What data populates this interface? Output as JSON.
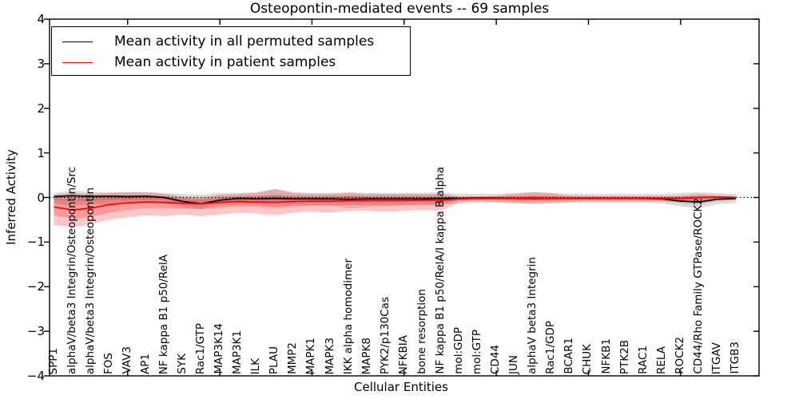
{
  "chart_data": {
    "type": "line",
    "title": "Osteopontin-mediated events -- 69 samples",
    "xlabel": "Cellular Entities",
    "ylabel": "Inferred Activity",
    "ylim": [
      -4,
      4
    ],
    "yticks": [
      -4,
      -3,
      -2,
      -1,
      0,
      1,
      2,
      3,
      4
    ],
    "grid": false,
    "zero_line": {
      "y": 0,
      "style": "dotted",
      "color": "#000000"
    },
    "legend": {
      "position": "upper left",
      "items": [
        {
          "label": "Mean activity in all permuted samples",
          "color": "#000000"
        },
        {
          "label": "Mean activity in patient samples",
          "color": "#ff0000"
        }
      ]
    },
    "categories": [
      "SPP1",
      "alphaV/beta3 Integrin/Osteopontin/Src",
      "alphaV/beta3 Integrin/Osteopontin",
      "FOS",
      "VAV3",
      "AP1",
      "NF kappa B1 p50/RelA",
      "SYK",
      "Rac1/GTP",
      "MAP3K14",
      "MAP3K1",
      "ILK",
      "PLAU",
      "MMP2",
      "MAPK1",
      "MAPK3",
      "IKK alpha homodimer",
      "MAPK8",
      "PYK2/p130Cas",
      "NFKBIA",
      "bone resorption",
      "NF kappa B1 p50/RelA/I kappa B alpha",
      "mol:GDP",
      "mol:GTP",
      "CD44",
      "JUN",
      "alphaV beta3 Integrin",
      "Rac1/GDP",
      "BCAR1",
      "CHUK",
      "NFKB1",
      "PTK2B",
      "RAC1",
      "RELA",
      "ROCK2",
      "CD44/Rho Family GTPase/ROCK2",
      "ITGAV",
      "ITGB3"
    ],
    "series": [
      {
        "name": "Mean activity in all permuted samples",
        "color": "#000000",
        "values": [
          0.02,
          0.04,
          0.02,
          0.03,
          0.02,
          0.03,
          0.0,
          -0.09,
          -0.14,
          -0.06,
          -0.02,
          -0.03,
          -0.02,
          -0.03,
          -0.03,
          -0.03,
          -0.04,
          -0.03,
          -0.03,
          -0.03,
          -0.03,
          -0.02,
          -0.02,
          -0.01,
          -0.01,
          -0.02,
          -0.02,
          -0.02,
          -0.02,
          -0.02,
          -0.02,
          -0.02,
          -0.02,
          -0.03,
          -0.08,
          -0.1,
          -0.04,
          -0.02
        ]
      },
      {
        "name": "Mean activity in patient samples",
        "color": "#ff0000",
        "values": [
          -0.21,
          -0.28,
          -0.24,
          -0.16,
          -0.12,
          -0.1,
          -0.11,
          -0.13,
          -0.14,
          -0.11,
          -0.09,
          -0.1,
          -0.11,
          -0.09,
          -0.08,
          -0.08,
          -0.07,
          -0.07,
          -0.07,
          -0.07,
          -0.06,
          -0.06,
          -0.03,
          -0.02,
          -0.02,
          -0.02,
          -0.01,
          -0.02,
          -0.02,
          -0.02,
          -0.02,
          -0.02,
          -0.02,
          -0.02,
          -0.02,
          0.0,
          0.01,
          0.0
        ]
      }
    ],
    "bands": [
      {
        "name": "permuted-outer",
        "color": "rgba(128,128,128,0.28)",
        "upper": [
          0.1,
          0.16,
          0.12,
          0.12,
          0.12,
          0.12,
          0.1,
          0.08,
          0.06,
          0.1,
          0.1,
          0.12,
          0.2,
          0.12,
          0.1,
          0.1,
          0.12,
          0.1,
          0.1,
          0.1,
          0.1,
          0.12,
          0.08,
          0.08,
          0.08,
          0.1,
          0.12,
          0.1,
          0.08,
          0.08,
          0.08,
          0.08,
          0.08,
          0.08,
          0.1,
          0.12,
          0.1,
          0.08
        ],
        "lower": [
          -0.14,
          -0.18,
          -0.16,
          -0.14,
          -0.14,
          -0.13,
          -0.14,
          -0.22,
          -0.26,
          -0.18,
          -0.16,
          -0.17,
          -0.2,
          -0.18,
          -0.18,
          -0.18,
          -0.24,
          -0.22,
          -0.2,
          -0.18,
          -0.18,
          -0.16,
          -0.14,
          -0.12,
          -0.12,
          -0.13,
          -0.14,
          -0.13,
          -0.12,
          -0.12,
          -0.12,
          -0.12,
          -0.12,
          -0.13,
          -0.2,
          -0.24,
          -0.15,
          -0.12
        ]
      },
      {
        "name": "permuted-inner",
        "color": "rgba(128,128,128,0.28)",
        "upper": [
          0.05,
          0.07,
          0.05,
          0.06,
          0.06,
          0.06,
          0.04,
          0.0,
          -0.02,
          0.02,
          0.03,
          0.04,
          0.07,
          0.04,
          0.03,
          0.03,
          0.04,
          0.03,
          0.03,
          0.03,
          0.03,
          0.04,
          0.02,
          0.02,
          0.02,
          0.03,
          0.04,
          0.03,
          0.02,
          0.02,
          0.02,
          0.02,
          0.02,
          0.02,
          0.02,
          0.03,
          0.03,
          0.02
        ],
        "lower": [
          -0.06,
          -0.08,
          -0.07,
          -0.06,
          -0.06,
          -0.05,
          -0.06,
          -0.16,
          -0.2,
          -0.1,
          -0.08,
          -0.08,
          -0.1,
          -0.09,
          -0.09,
          -0.09,
          -0.12,
          -0.11,
          -0.1,
          -0.09,
          -0.09,
          -0.08,
          -0.07,
          -0.06,
          -0.06,
          -0.06,
          -0.07,
          -0.06,
          -0.06,
          -0.06,
          -0.06,
          -0.06,
          -0.06,
          -0.07,
          -0.13,
          -0.16,
          -0.08,
          -0.06
        ]
      },
      {
        "name": "patient-outer",
        "color": "rgba(255,0,0,0.22)",
        "upper": [
          0.06,
          0.1,
          0.08,
          0.1,
          0.12,
          0.12,
          0.08,
          0.02,
          0.0,
          0.06,
          0.08,
          0.1,
          0.18,
          0.1,
          0.08,
          0.08,
          0.1,
          0.08,
          0.08,
          0.08,
          0.08,
          0.08,
          0.02,
          0.02,
          0.04,
          0.08,
          0.12,
          0.1,
          0.04,
          0.03,
          0.03,
          0.03,
          0.03,
          0.03,
          0.04,
          0.08,
          0.05,
          0.03
        ],
        "lower": [
          -0.62,
          -0.66,
          -0.6,
          -0.5,
          -0.44,
          -0.4,
          -0.42,
          -0.38,
          -0.42,
          -0.38,
          -0.34,
          -0.36,
          -0.4,
          -0.34,
          -0.32,
          -0.34,
          -0.3,
          -0.3,
          -0.32,
          -0.3,
          -0.28,
          -0.3,
          -0.1,
          -0.08,
          -0.1,
          -0.12,
          -0.14,
          -0.12,
          -0.1,
          -0.09,
          -0.09,
          -0.09,
          -0.09,
          -0.09,
          -0.1,
          -0.08,
          -0.06,
          -0.05
        ]
      },
      {
        "name": "patient-inner",
        "color": "rgba(255,0,0,0.22)",
        "upper": [
          -0.02,
          -0.04,
          -0.02,
          0.0,
          0.02,
          0.03,
          0.0,
          -0.03,
          -0.05,
          -0.01,
          0.01,
          0.02,
          0.05,
          0.02,
          0.02,
          0.02,
          0.03,
          0.02,
          0.02,
          0.02,
          0.02,
          0.02,
          0.0,
          0.0,
          0.01,
          0.02,
          0.04,
          0.03,
          0.01,
          0.01,
          0.01,
          0.01,
          0.01,
          0.01,
          0.01,
          0.03,
          0.02,
          0.01
        ],
        "lower": [
          -0.4,
          -0.48,
          -0.44,
          -0.34,
          -0.28,
          -0.24,
          -0.24,
          -0.25,
          -0.26,
          -0.23,
          -0.2,
          -0.21,
          -0.24,
          -0.2,
          -0.18,
          -0.18,
          -0.17,
          -0.17,
          -0.17,
          -0.17,
          -0.16,
          -0.16,
          -0.06,
          -0.05,
          -0.05,
          -0.06,
          -0.07,
          -0.06,
          -0.05,
          -0.05,
          -0.05,
          -0.05,
          -0.05,
          -0.05,
          -0.06,
          -0.04,
          -0.03,
          -0.03
        ]
      }
    ]
  }
}
